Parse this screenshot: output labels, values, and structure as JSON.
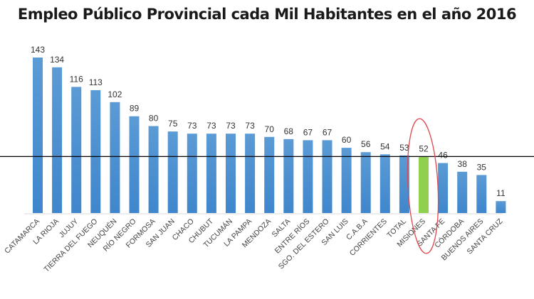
{
  "chart_data": {
    "type": "bar",
    "title": "Empleo Público Provincial cada Mil Habitantes en el año 2016",
    "xlabel": "",
    "ylabel": "",
    "ylim": [
      0,
      150
    ],
    "grid": false,
    "legend": "none",
    "categories": [
      "CATAMARCA",
      "LA RIOJA",
      "JUJUY",
      "TIERRA DEL FUEGO",
      "NEUQUÉN",
      "RÍO NEGRO",
      "FORMOSA",
      "SAN JUAN",
      "CHACO",
      "CHUBUT",
      "TUCUMÁN",
      "LA PAMPA",
      "MENDOZA",
      "SALTA",
      "ENTRE RÍOS",
      "SGO. DEL ESTERO",
      "SAN LUIS",
      "C.A.B.A",
      "CORRIENTES",
      "TOTAL",
      "MISIONES",
      "SANTA FE",
      "CÓRDOBA",
      "BUENOS AIRES",
      "SANTA CRUZ"
    ],
    "values": [
      143,
      134,
      116,
      113,
      102,
      89,
      80,
      75,
      73,
      73,
      73,
      73,
      70,
      68,
      67,
      67,
      60,
      56,
      54,
      53,
      52,
      46,
      38,
      35,
      11
    ],
    "highlight": {
      "category": "MISIONES",
      "color": "#8fd14f",
      "annotation": "red ellipse"
    },
    "reference_line": {
      "value": 52,
      "color": "#000000"
    },
    "bar_color": "#4a90d9"
  }
}
